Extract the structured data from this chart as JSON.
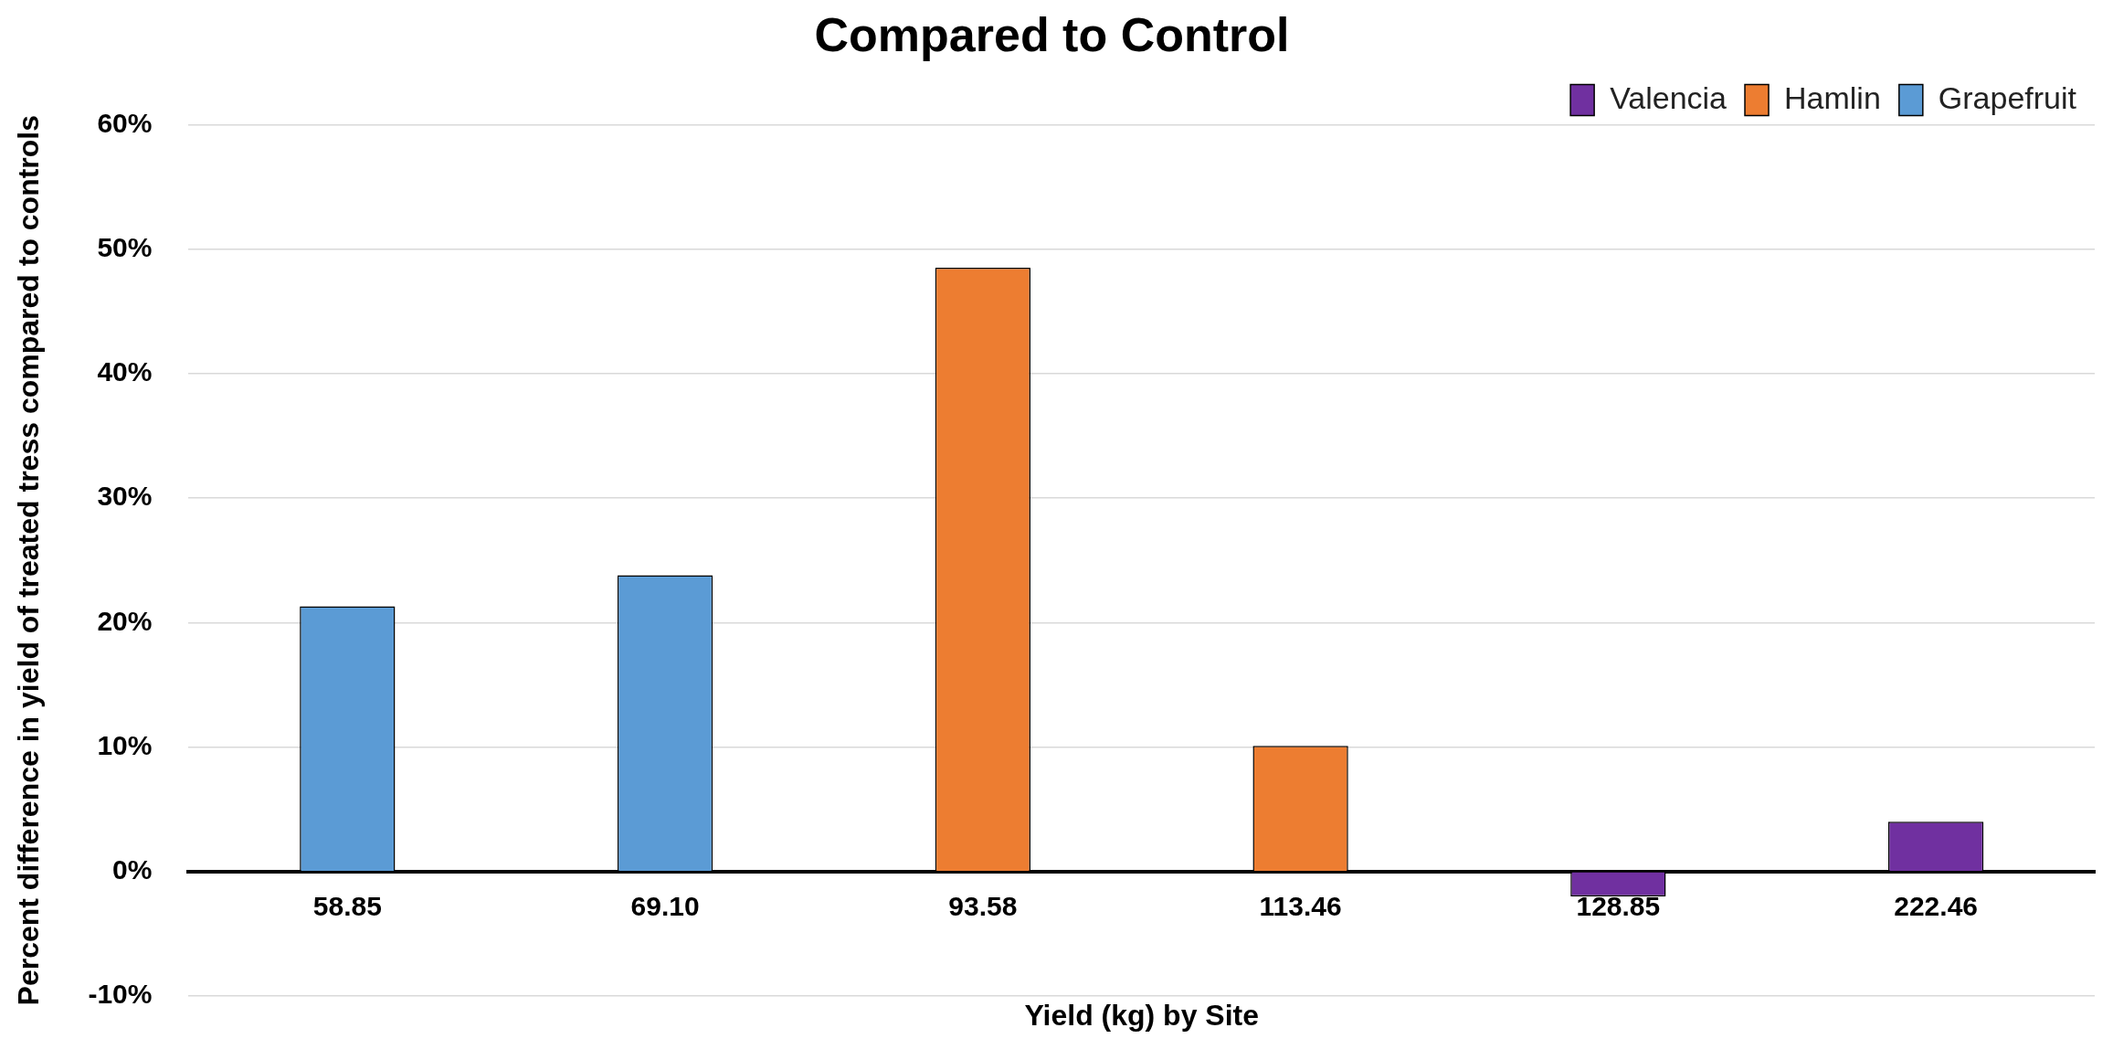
{
  "chart_data": {
    "type": "bar",
    "title": "Compared to Control",
    "xlabel": "Yield (kg) by Site",
    "ylabel": "Percent difference in yield of treated tress compared to controls",
    "categories": [
      "58.85",
      "69.10",
      "93.58",
      "113.46",
      "128.85",
      "222.46"
    ],
    "series": [
      {
        "name": "Valencia",
        "color": "#7030a0",
        "values": [
          null,
          null,
          null,
          null,
          -2.0,
          4.0
        ]
      },
      {
        "name": "Hamlin",
        "color": "#ed7d31",
        "values": [
          null,
          null,
          48.5,
          10.1,
          null,
          null
        ]
      },
      {
        "name": "Grapefruit",
        "color": "#5b9bd5",
        "values": [
          21.3,
          23.8,
          null,
          null,
          null,
          null
        ]
      }
    ],
    "ylim": [
      -10,
      60
    ],
    "yticks": [
      {
        "value": -10,
        "label": "-10%"
      },
      {
        "value": 0,
        "label": "0%"
      },
      {
        "value": 10,
        "label": "10%"
      },
      {
        "value": 20,
        "label": "20%"
      },
      {
        "value": 30,
        "label": "30%"
      },
      {
        "value": 40,
        "label": "40%"
      },
      {
        "value": 50,
        "label": "50%"
      },
      {
        "value": 60,
        "label": "60%"
      }
    ],
    "grid": "y",
    "legend": "top right"
  }
}
